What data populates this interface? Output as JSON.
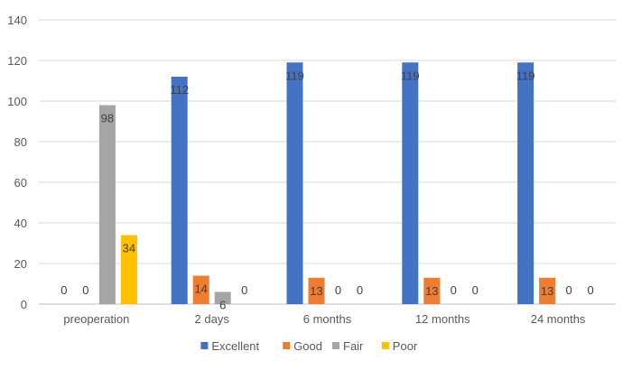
{
  "chart_data": {
    "type": "bar",
    "categories": [
      "preoperation",
      "2 days",
      "6 months",
      "12 months",
      "24 months"
    ],
    "series": [
      {
        "name": "Excellent",
        "color": "#4472C4",
        "values": [
          0,
          112,
          119,
          119,
          119
        ]
      },
      {
        "name": "Good",
        "color": "#ED7D31",
        "values": [
          0,
          14,
          13,
          13,
          13
        ]
      },
      {
        "name": "Fair",
        "color": "#A5A5A5",
        "values": [
          98,
          6,
          0,
          0,
          0
        ]
      },
      {
        "name": "Poor",
        "color": "#FFC000",
        "values": [
          34,
          0,
          0,
          0,
          0
        ]
      }
    ],
    "ylim": [
      0,
      140
    ],
    "yticks": [
      0,
      20,
      40,
      60,
      80,
      100,
      120,
      140
    ],
    "grid": true,
    "legend_position": "bottom",
    "data_labels": true
  }
}
